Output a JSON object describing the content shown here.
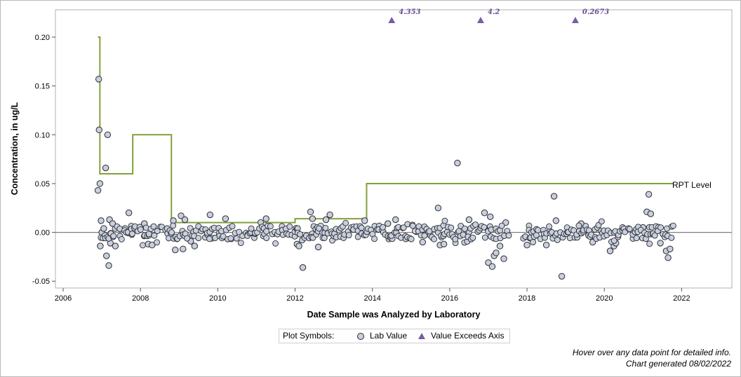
{
  "chart_data": {
    "type": "scatter",
    "xlabel": "Date Sample was Analyzed by Laboratory",
    "ylabel": "Concentration, in ug/L",
    "xlim": [
      2005.8,
      2023.3
    ],
    "ylim": [
      -0.057,
      0.228
    ],
    "x_ticks": [
      2006,
      2008,
      2010,
      2012,
      2014,
      2016,
      2018,
      2020,
      2022
    ],
    "y_ticks": [
      -0.05,
      0.0,
      0.05,
      0.1,
      0.15,
      0.2
    ],
    "y_tick_labels": [
      "-0.05",
      "0.00",
      "0.05",
      "0.10",
      "0.15",
      "0.20"
    ],
    "zero_line": 0,
    "grid": false,
    "colors": {
      "lab_value_fill": "#c7cfe0",
      "lab_value_edge": "#2b2b2b",
      "rpt_line": "#82a03c",
      "exceeds_marker": "#7a5ca6",
      "zero_line": "#808080"
    },
    "rpt_level": {
      "name": "RPT Level",
      "steps": [
        [
          2006.9,
          0.2
        ],
        [
          2006.95,
          0.06
        ],
        [
          2007.8,
          0.1
        ],
        [
          2008.8,
          0.01
        ],
        [
          2008.85,
          0.01
        ],
        [
          2012.0,
          0.014
        ],
        [
          2013.85,
          0.05
        ],
        [
          2021.8,
          0.05
        ]
      ]
    },
    "exceeds_axis": [
      {
        "x": 2014.5,
        "label": "4.353"
      },
      {
        "x": 2016.8,
        "label": "4.2"
      },
      {
        "x": 2019.25,
        "label": "0.2673"
      }
    ],
    "lab_values": [
      {
        "x": 2006.9,
        "y": 0.043
      },
      {
        "x": 2006.92,
        "y": 0.157
      },
      {
        "x": 2006.93,
        "y": 0.105
      },
      {
        "x": 2006.95,
        "y": 0.05
      },
      {
        "x": 2006.96,
        "y": -0.014
      },
      {
        "x": 2006.98,
        "y": 0.012
      },
      {
        "x": 2007.0,
        "y": 0.0
      },
      {
        "x": 2007.05,
        "y": 0.004
      },
      {
        "x": 2007.1,
        "y": 0.066
      },
      {
        "x": 2007.12,
        "y": -0.024
      },
      {
        "x": 2007.15,
        "y": 0.1
      },
      {
        "x": 2007.18,
        "y": -0.034
      },
      {
        "x": 2007.2,
        "y": 0.013
      },
      {
        "x": 2007.22,
        "y": -0.011
      },
      {
        "x": 2007.28,
        "y": 0.009
      },
      {
        "x": 2007.35,
        "y": -0.014
      },
      {
        "x": 2007.6,
        "y": 0.004
      },
      {
        "x": 2007.7,
        "y": 0.02
      },
      {
        "x": 2008.1,
        "y": 0.009
      },
      {
        "x": 2008.2,
        "y": -0.012
      },
      {
        "x": 2008.3,
        "y": -0.013
      },
      {
        "x": 2008.85,
        "y": 0.012
      },
      {
        "x": 2008.9,
        "y": -0.018
      },
      {
        "x": 2009.05,
        "y": 0.017
      },
      {
        "x": 2009.1,
        "y": -0.017
      },
      {
        "x": 2009.15,
        "y": 0.013
      },
      {
        "x": 2009.3,
        "y": -0.009
      },
      {
        "x": 2009.4,
        "y": -0.014
      },
      {
        "x": 2009.8,
        "y": 0.018
      },
      {
        "x": 2009.85,
        "y": -0.006
      },
      {
        "x": 2010.2,
        "y": 0.014
      },
      {
        "x": 2011.25,
        "y": 0.014
      },
      {
        "x": 2012.05,
        "y": -0.012
      },
      {
        "x": 2012.1,
        "y": -0.014
      },
      {
        "x": 2012.2,
        "y": -0.036
      },
      {
        "x": 2012.4,
        "y": 0.021
      },
      {
        "x": 2012.45,
        "y": 0.014
      },
      {
        "x": 2012.6,
        "y": -0.015
      },
      {
        "x": 2012.8,
        "y": 0.013
      },
      {
        "x": 2012.9,
        "y": 0.018
      },
      {
        "x": 2013.8,
        "y": 0.012
      },
      {
        "x": 2014.4,
        "y": 0.009
      },
      {
        "x": 2014.6,
        "y": 0.013
      },
      {
        "x": 2015.3,
        "y": -0.01
      },
      {
        "x": 2015.7,
        "y": 0.025
      },
      {
        "x": 2015.75,
        "y": -0.013
      },
      {
        "x": 2015.85,
        "y": -0.012
      },
      {
        "x": 2016.2,
        "y": 0.071
      },
      {
        "x": 2016.5,
        "y": 0.013
      },
      {
        "x": 2016.9,
        "y": 0.02
      },
      {
        "x": 2017.0,
        "y": -0.031
      },
      {
        "x": 2017.05,
        "y": 0.016
      },
      {
        "x": 2017.1,
        "y": -0.035
      },
      {
        "x": 2017.15,
        "y": -0.024
      },
      {
        "x": 2017.2,
        "y": -0.021
      },
      {
        "x": 2017.3,
        "y": -0.014
      },
      {
        "x": 2017.4,
        "y": -0.027
      },
      {
        "x": 2017.45,
        "y": 0.01
      },
      {
        "x": 2018.0,
        "y": -0.013
      },
      {
        "x": 2018.5,
        "y": -0.013
      },
      {
        "x": 2018.7,
        "y": 0.037
      },
      {
        "x": 2018.75,
        "y": 0.012
      },
      {
        "x": 2018.9,
        "y": -0.045
      },
      {
        "x": 2019.4,
        "y": 0.009
      },
      {
        "x": 2019.7,
        "y": -0.01
      },
      {
        "x": 2020.15,
        "y": -0.019
      },
      {
        "x": 2020.25,
        "y": -0.014
      },
      {
        "x": 2020.3,
        "y": -0.011
      },
      {
        "x": 2021.0,
        "y": 0.005
      },
      {
        "x": 2021.1,
        "y": 0.021
      },
      {
        "x": 2021.15,
        "y": 0.039
      },
      {
        "x": 2021.2,
        "y": 0.019
      },
      {
        "x": 2021.45,
        "y": -0.011
      },
      {
        "x": 2021.6,
        "y": -0.019
      },
      {
        "x": 2021.65,
        "y": -0.026
      },
      {
        "x": 2021.7,
        "y": -0.017
      }
    ],
    "legend": {
      "position": "bottom-center",
      "title": "Plot Symbols:",
      "entries": [
        "Lab Value",
        "Value Exceeds Axis"
      ]
    }
  },
  "footer": {
    "hint": "Hover over any data point for detailed info.",
    "generated": "Chart generated 08/02/2022"
  }
}
